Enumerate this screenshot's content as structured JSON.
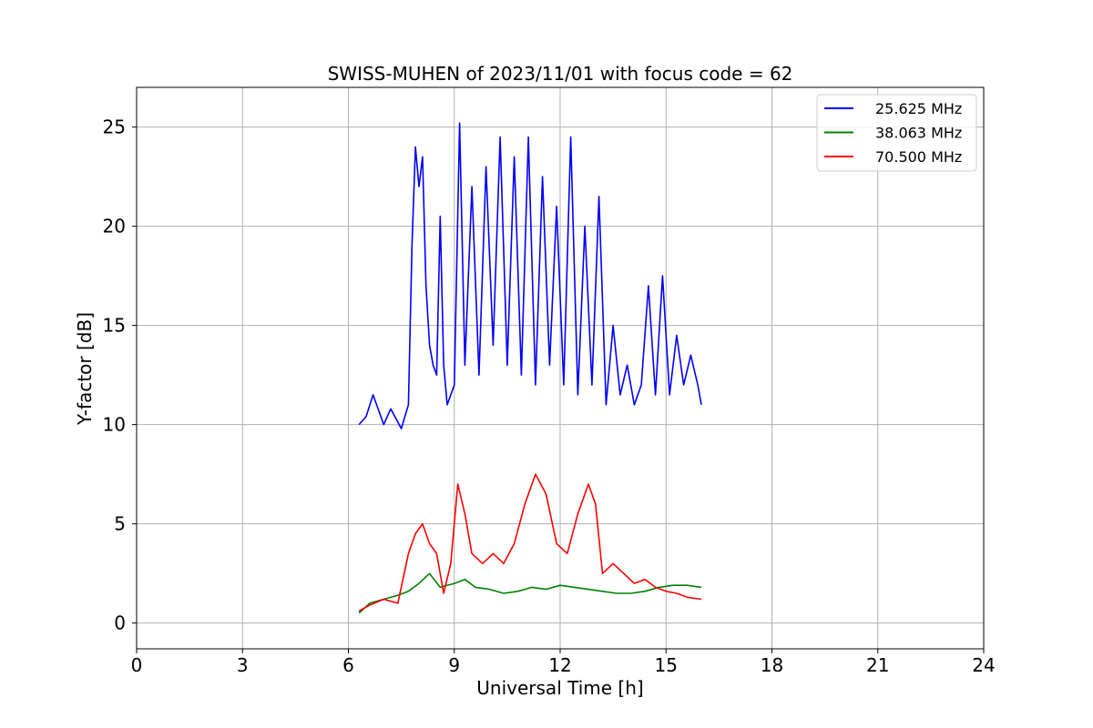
{
  "chart_data": {
    "type": "line",
    "title": "SWISS-MUHEN of 2023/11/01 with focus code = 62",
    "xlabel": "Universal Time [h]",
    "ylabel": "Y-factor [dB]",
    "xlim": [
      0,
      24
    ],
    "ylim": [
      -1.3,
      27
    ],
    "xticks": [
      0,
      3,
      6,
      9,
      12,
      15,
      18,
      21,
      24
    ],
    "yticks": [
      0,
      5,
      10,
      15,
      20,
      25
    ],
    "grid": true,
    "legend_position": "top-right",
    "series": [
      {
        "name": "25.625 MHz",
        "color": "#0000ff",
        "x": [
          6.3,
          6.5,
          6.7,
          7.0,
          7.2,
          7.5,
          7.7,
          7.8,
          7.9,
          8.0,
          8.1,
          8.2,
          8.3,
          8.4,
          8.5,
          8.6,
          8.7,
          8.8,
          9.0,
          9.15,
          9.3,
          9.5,
          9.7,
          9.9,
          10.1,
          10.3,
          10.5,
          10.7,
          10.9,
          11.1,
          11.3,
          11.5,
          11.7,
          11.9,
          12.1,
          12.3,
          12.5,
          12.7,
          12.9,
          13.1,
          13.3,
          13.5,
          13.7,
          13.9,
          14.1,
          14.3,
          14.5,
          14.7,
          14.9,
          15.1,
          15.3,
          15.5,
          15.7,
          15.9,
          16.0
        ],
        "values": [
          10,
          10.4,
          11.5,
          10.0,
          10.8,
          9.8,
          11.0,
          19.0,
          24.0,
          22.0,
          23.5,
          17.0,
          14.0,
          13.0,
          12.5,
          20.5,
          13.0,
          11.0,
          12.0,
          25.2,
          13.0,
          22.0,
          12.5,
          23.0,
          14.0,
          24.5,
          13.0,
          23.5,
          12.5,
          24.5,
          12.0,
          22.5,
          13.0,
          21.0,
          12.0,
          24.5,
          11.5,
          20.0,
          12.0,
          21.5,
          11.0,
          15.0,
          11.5,
          13.0,
          11.0,
          12.0,
          17.0,
          11.5,
          17.5,
          11.5,
          14.5,
          12.0,
          13.5,
          12.0,
          11.0
        ]
      },
      {
        "name": "38.063 MHz",
        "color": "#008000",
        "x": [
          6.3,
          6.6,
          7.0,
          7.4,
          7.7,
          8.0,
          8.3,
          8.6,
          9.0,
          9.3,
          9.6,
          10.0,
          10.4,
          10.8,
          11.2,
          11.6,
          12.0,
          12.4,
          12.8,
          13.2,
          13.6,
          14.0,
          14.4,
          14.8,
          15.2,
          15.6,
          16.0
        ],
        "values": [
          0.5,
          1.0,
          1.2,
          1.4,
          1.6,
          2.0,
          2.5,
          1.8,
          2.0,
          2.2,
          1.8,
          1.7,
          1.5,
          1.6,
          1.8,
          1.7,
          1.9,
          1.8,
          1.7,
          1.6,
          1.5,
          1.5,
          1.6,
          1.8,
          1.9,
          1.9,
          1.8
        ]
      },
      {
        "name": "70.500 MHz",
        "color": "#ff0000",
        "x": [
          6.3,
          6.6,
          7.0,
          7.4,
          7.7,
          7.9,
          8.1,
          8.3,
          8.5,
          8.7,
          8.9,
          9.1,
          9.3,
          9.5,
          9.8,
          10.1,
          10.4,
          10.7,
          11.0,
          11.3,
          11.6,
          11.9,
          12.2,
          12.5,
          12.8,
          13.0,
          13.2,
          13.5,
          13.8,
          14.1,
          14.4,
          14.7,
          15.0,
          15.3,
          15.6,
          16.0
        ],
        "values": [
          0.6,
          0.9,
          1.2,
          1.0,
          3.5,
          4.5,
          5.0,
          4.0,
          3.5,
          1.5,
          3.0,
          7.0,
          5.5,
          3.5,
          3.0,
          3.5,
          3.0,
          4.0,
          6.0,
          7.5,
          6.5,
          4.0,
          3.5,
          5.5,
          7.0,
          6.0,
          2.5,
          3.0,
          2.5,
          2.0,
          2.2,
          1.8,
          1.6,
          1.5,
          1.3,
          1.2
        ]
      }
    ]
  }
}
